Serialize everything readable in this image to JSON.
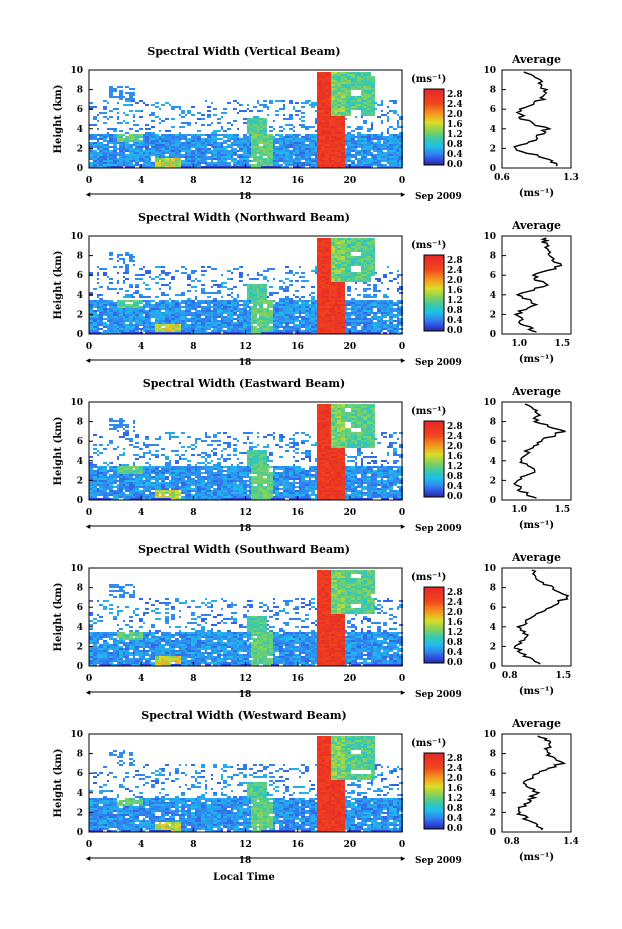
{
  "figure": {
    "x_title": "Local Time",
    "day_label": "18",
    "date_label": "Sep 2009"
  },
  "chart_data": [
    {
      "type": "heatmap",
      "title": "Spectral Width (Vertical Beam)",
      "ylabel": "Height (km)",
      "x_ticks": [
        "0",
        "4",
        "8",
        "12",
        "16",
        "20",
        "0"
      ],
      "y_ticks": [
        "0",
        "2",
        "4",
        "6",
        "8",
        "10"
      ],
      "xlim": [
        0,
        24
      ],
      "ylim": [
        0,
        10
      ],
      "colorbar": {
        "unit": "(ms⁻¹)",
        "ticks": [
          "0.0",
          "0.4",
          "0.8",
          "1.2",
          "1.6",
          "2.0",
          "2.4",
          "2.8"
        ],
        "range": [
          0,
          3.0
        ]
      },
      "profile": {
        "title": "Average",
        "xlabel": "(ms⁻¹)",
        "x_ticks": [
          "0.6",
          "1.3"
        ],
        "xlim": [
          0.6,
          1.3
        ],
        "heights": [
          0.2,
          1,
          2,
          3,
          4,
          5,
          6,
          7,
          8,
          9,
          9.8
        ],
        "values": [
          1.15,
          1.05,
          0.72,
          0.95,
          1.05,
          0.8,
          0.78,
          1.0,
          1.02,
          1.0,
          0.8
        ]
      }
    },
    {
      "type": "heatmap",
      "title": "Spectral Width (Northward Beam)",
      "ylabel": "Height (km)",
      "x_ticks": [
        "0",
        "4",
        "8",
        "12",
        "16",
        "20",
        "0"
      ],
      "y_ticks": [
        "0",
        "2",
        "4",
        "6",
        "8",
        "10"
      ],
      "xlim": [
        0,
        24
      ],
      "ylim": [
        0,
        10
      ],
      "colorbar": {
        "unit": "(ms⁻¹)",
        "ticks": [
          "0.0",
          "0.4",
          "0.8",
          "1.2",
          "1.6",
          "2.0",
          "2.4",
          "2.8"
        ],
        "range": [
          0,
          3.0
        ]
      },
      "profile": {
        "title": "Average",
        "xlabel": "(ms⁻¹)",
        "x_ticks": [
          "1.0",
          "1.5"
        ],
        "xlim": [
          0.8,
          1.6
        ],
        "heights": [
          0.2,
          1,
          2,
          3,
          4,
          5,
          6,
          7,
          8,
          9,
          9.8
        ],
        "values": [
          1.2,
          1.05,
          0.95,
          1.2,
          1.0,
          1.3,
          1.15,
          1.5,
          1.35,
          1.3,
          1.3
        ]
      }
    },
    {
      "type": "heatmap",
      "title": "Spectral Width (Eastward Beam)",
      "ylabel": "Height (km)",
      "x_ticks": [
        "0",
        "4",
        "8",
        "12",
        "16",
        "20",
        "0"
      ],
      "y_ticks": [
        "0",
        "2",
        "4",
        "6",
        "8",
        "10"
      ],
      "xlim": [
        0,
        24
      ],
      "ylim": [
        0,
        10
      ],
      "colorbar": {
        "unit": "(ms⁻¹)",
        "ticks": [
          "0.0",
          "0.4",
          "0.8",
          "1.2",
          "1.6",
          "2.0",
          "2.4",
          "2.8"
        ],
        "range": [
          0,
          3.0
        ]
      },
      "profile": {
        "title": "Average",
        "xlabel": "(ms⁻¹)",
        "x_ticks": [
          "1.0",
          "1.5"
        ],
        "xlim": [
          0.8,
          1.6
        ],
        "heights": [
          0.2,
          1,
          2,
          3,
          4,
          5,
          6,
          7,
          8,
          9,
          9.8
        ],
        "values": [
          1.2,
          1.0,
          0.95,
          1.2,
          1.0,
          1.1,
          1.25,
          1.5,
          1.2,
          1.2,
          1.1
        ]
      }
    },
    {
      "type": "heatmap",
      "title": "Spectral Width (Southward Beam)",
      "ylabel": "Height (km)",
      "x_ticks": [
        "0",
        "4",
        "8",
        "12",
        "16",
        "20",
        "0"
      ],
      "y_ticks": [
        "0",
        "2",
        "4",
        "6",
        "8",
        "10"
      ],
      "xlim": [
        0,
        24
      ],
      "ylim": [
        0,
        10
      ],
      "colorbar": {
        "unit": "(ms⁻¹)",
        "ticks": [
          "0.0",
          "0.4",
          "0.8",
          "1.2",
          "1.6",
          "2.0",
          "2.4",
          "2.8"
        ],
        "range": [
          0,
          3.0
        ]
      },
      "profile": {
        "title": "Average",
        "xlabel": "(ms⁻¹)",
        "x_ticks": [
          "0.8",
          "1.5"
        ],
        "xlim": [
          0.7,
          1.6
        ],
        "heights": [
          0.2,
          1,
          2,
          3,
          4,
          5,
          6,
          7,
          8,
          9,
          9.8
        ],
        "values": [
          1.2,
          1.0,
          0.85,
          1.05,
          0.95,
          1.05,
          1.3,
          1.55,
          1.35,
          1.1,
          1.1
        ]
      }
    },
    {
      "type": "heatmap",
      "title": "Spectral Width (Westward Beam)",
      "ylabel": "Height (km)",
      "x_ticks": [
        "0",
        "4",
        "8",
        "12",
        "16",
        "20",
        "0"
      ],
      "y_ticks": [
        "0",
        "2",
        "4",
        "6",
        "8",
        "10"
      ],
      "xlim": [
        0,
        24
      ],
      "ylim": [
        0,
        10
      ],
      "colorbar": {
        "unit": "(ms⁻¹)",
        "ticks": [
          "0.0",
          "0.4",
          "0.8",
          "1.2",
          "1.6",
          "2.0",
          "2.4",
          "2.8"
        ],
        "range": [
          0,
          3.0
        ]
      },
      "profile": {
        "title": "Average",
        "xlabel": "(ms⁻¹)",
        "x_ticks": [
          "0.8",
          "1.4"
        ],
        "xlim": [
          0.7,
          1.4
        ],
        "heights": [
          0.2,
          1,
          2,
          3,
          4,
          5,
          6,
          7,
          8,
          9,
          9.8
        ],
        "values": [
          1.1,
          1.0,
          0.85,
          0.95,
          1.05,
          0.9,
          1.05,
          1.3,
          1.15,
          1.2,
          1.1
        ]
      }
    }
  ]
}
